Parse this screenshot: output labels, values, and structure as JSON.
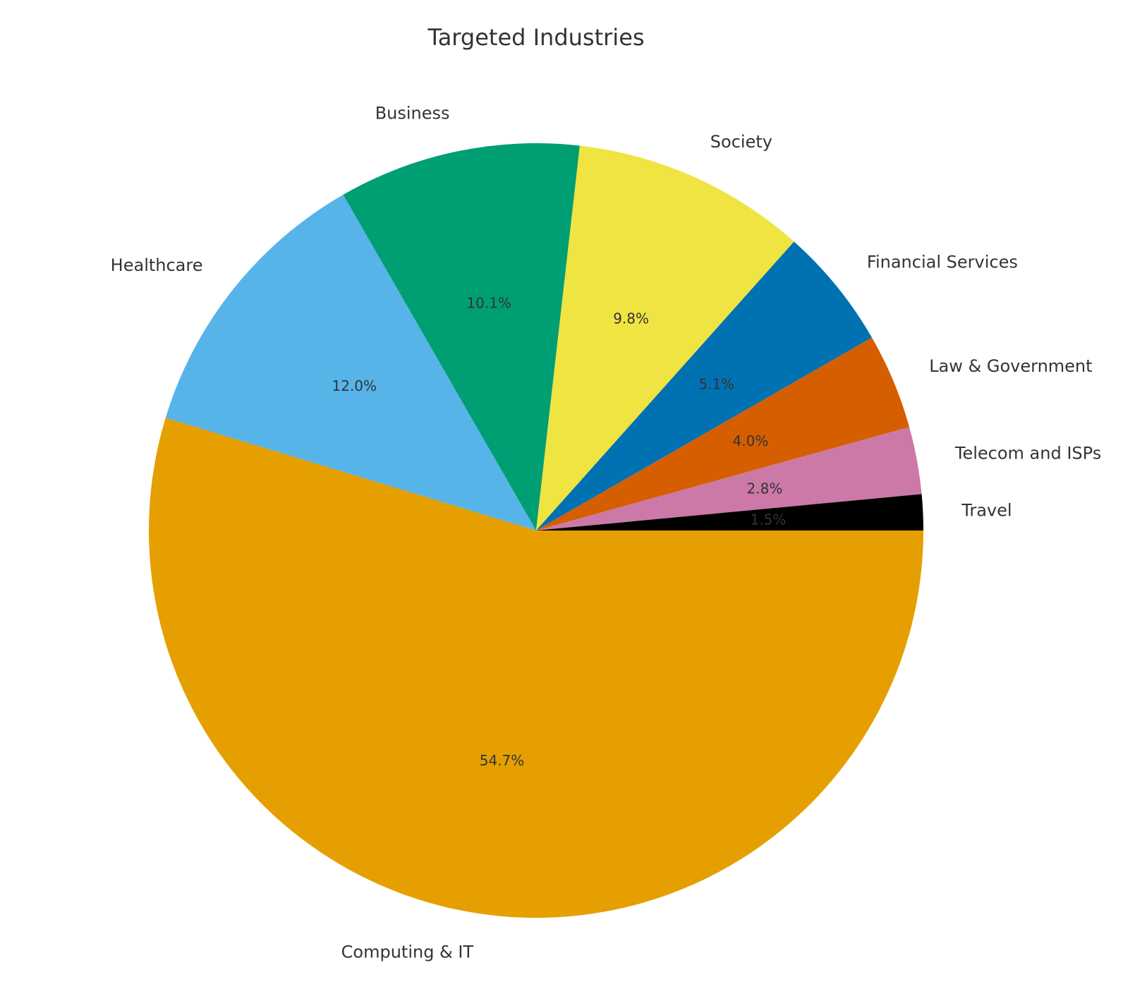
{
  "chart_data": {
    "type": "pie",
    "title": "Targeted Industries",
    "start_angle_deg": 0,
    "direction": "clockwise",
    "slices": [
      {
        "label": "Computing & IT",
        "value": 54.7,
        "pct_label": "54.7%",
        "color": "#E69F00"
      },
      {
        "label": "Healthcare",
        "value": 12.0,
        "pct_label": "12.0%",
        "color": "#56B4E9"
      },
      {
        "label": "Business",
        "value": 10.1,
        "pct_label": "10.1%",
        "color": "#009E73"
      },
      {
        "label": "Society",
        "value": 9.8,
        "pct_label": "9.8%",
        "color": "#F0E442"
      },
      {
        "label": "Financial Services",
        "value": 5.1,
        "pct_label": "5.1%",
        "color": "#0072B2"
      },
      {
        "label": "Law & Government",
        "value": 4.0,
        "pct_label": "4.0%",
        "color": "#D55E00"
      },
      {
        "label": "Telecom and ISPs",
        "value": 2.8,
        "pct_label": "2.8%",
        "color": "#CC79A7"
      },
      {
        "label": "Travel",
        "value": 1.5,
        "pct_label": "1.5%",
        "color": "#000000"
      }
    ]
  }
}
